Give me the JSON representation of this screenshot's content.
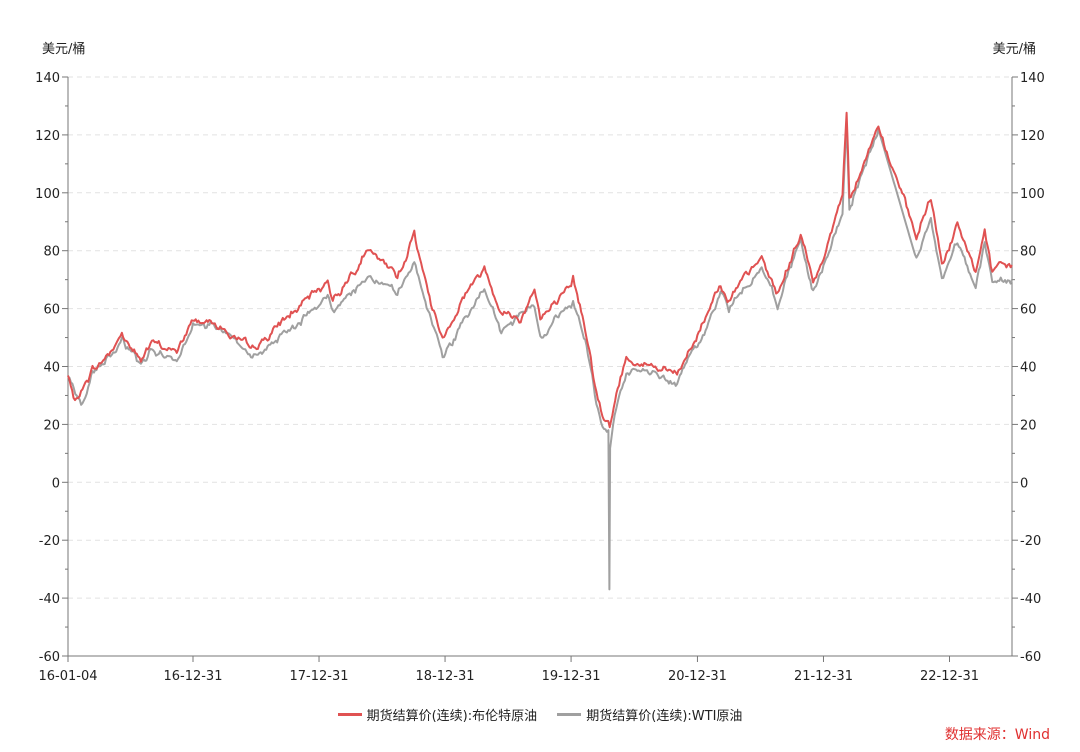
{
  "y_unit_left": "美元/桶",
  "y_unit_right": "美元/桶",
  "source": "数据来源：Wind",
  "colors": {
    "brent": "#e05252",
    "wti": "#a0a0a0",
    "grid": "#e2e2e2",
    "axis": "#777777"
  },
  "chart_data": {
    "type": "line",
    "ylim": [
      -60,
      140
    ],
    "yticks": [
      140,
      120,
      100,
      80,
      60,
      40,
      20,
      0,
      -20,
      -40,
      -60
    ],
    "xlim": [
      "2016-01-04",
      "2023-06-30"
    ],
    "xticks": [
      {
        "date": "2016-01-04",
        "label": "16-01-04"
      },
      {
        "date": "2016-12-31",
        "label": "16-12-31"
      },
      {
        "date": "2017-12-31",
        "label": "17-12-31"
      },
      {
        "date": "2018-12-31",
        "label": "18-12-31"
      },
      {
        "date": "2019-12-31",
        "label": "19-12-31"
      },
      {
        "date": "2020-12-31",
        "label": "20-12-31"
      },
      {
        "date": "2021-12-31",
        "label": "21-12-31"
      },
      {
        "date": "2022-12-31",
        "label": "22-12-31"
      }
    ],
    "grid": true,
    "legend": "bottom",
    "series": [
      {
        "name": "期货结算价(连续):布伦特原油",
        "key": "brent",
        "points": [
          [
            "2016-01-04",
            37
          ],
          [
            "2016-01-20",
            28
          ],
          [
            "2016-02-11",
            31
          ],
          [
            "2016-03-15",
            39
          ],
          [
            "2016-04-15",
            42
          ],
          [
            "2016-06-08",
            51
          ],
          [
            "2016-08-02",
            42
          ],
          [
            "2016-08-30",
            48
          ],
          [
            "2016-11-14",
            45
          ],
          [
            "2016-12-31",
            56
          ],
          [
            "2017-02-28",
            56
          ],
          [
            "2017-06-21",
            45
          ],
          [
            "2017-09-29",
            57
          ],
          [
            "2017-12-31",
            66
          ],
          [
            "2018-01-25",
            70
          ],
          [
            "2018-02-09",
            63
          ],
          [
            "2018-05-17",
            80
          ],
          [
            "2018-08-15",
            71
          ],
          [
            "2018-10-03",
            86
          ],
          [
            "2018-11-20",
            62
          ],
          [
            "2018-12-24",
            50
          ],
          [
            "2019-02-28",
            66
          ],
          [
            "2019-04-24",
            74
          ],
          [
            "2019-06-12",
            60
          ],
          [
            "2019-08-07",
            56
          ],
          [
            "2019-09-16",
            68
          ],
          [
            "2019-10-03",
            57
          ],
          [
            "2019-12-31",
            66
          ],
          [
            "2020-01-06",
            69
          ],
          [
            "2020-02-10",
            54
          ],
          [
            "2020-03-09",
            35
          ],
          [
            "2020-03-31",
            23
          ],
          [
            "2020-04-21",
            19
          ],
          [
            "2020-05-18",
            34
          ],
          [
            "2020-06-08",
            43
          ],
          [
            "2020-09-08",
            40
          ],
          [
            "2020-11-02",
            37
          ],
          [
            "2020-12-31",
            51
          ],
          [
            "2021-03-08",
            70
          ],
          [
            "2021-04-01",
            63
          ],
          [
            "2021-07-05",
            77
          ],
          [
            "2021-08-20",
            65
          ],
          [
            "2021-10-26",
            86
          ],
          [
            "2021-12-01",
            69
          ],
          [
            "2021-12-31",
            78
          ],
          [
            "2022-02-24",
            100
          ],
          [
            "2022-03-08",
            128
          ],
          [
            "2022-03-16",
            99
          ],
          [
            "2022-06-08",
            123
          ],
          [
            "2022-09-26",
            84
          ],
          [
            "2022-11-07",
            98
          ],
          [
            "2022-12-09",
            76
          ],
          [
            "2023-01-23",
            88
          ],
          [
            "2023-03-17",
            73
          ],
          [
            "2023-04-12",
            87
          ],
          [
            "2023-05-04",
            72
          ],
          [
            "2023-06-30",
            75
          ]
        ]
      },
      {
        "name": "期货结算价(连续):WTI原油",
        "key": "wti",
        "points": [
          [
            "2016-01-04",
            36
          ],
          [
            "2016-02-11",
            26
          ],
          [
            "2016-03-15",
            37
          ],
          [
            "2016-04-15",
            40
          ],
          [
            "2016-06-08",
            50
          ],
          [
            "2016-08-02",
            40
          ],
          [
            "2016-08-30",
            46
          ],
          [
            "2016-11-14",
            43
          ],
          [
            "2016-12-31",
            54
          ],
          [
            "2017-02-28",
            54
          ],
          [
            "2017-06-21",
            43
          ],
          [
            "2017-09-29",
            52
          ],
          [
            "2017-12-31",
            60
          ],
          [
            "2018-01-25",
            66
          ],
          [
            "2018-02-09",
            59
          ],
          [
            "2018-05-21",
            72
          ],
          [
            "2018-08-15",
            65
          ],
          [
            "2018-10-03",
            76
          ],
          [
            "2018-11-20",
            55
          ],
          [
            "2018-12-24",
            43
          ],
          [
            "2019-04-24",
            66
          ],
          [
            "2019-06-12",
            52
          ],
          [
            "2019-09-16",
            62
          ],
          [
            "2019-10-03",
            52
          ],
          [
            "2019-12-31",
            61
          ],
          [
            "2020-01-06",
            63
          ],
          [
            "2020-02-10",
            50
          ],
          [
            "2020-03-09",
            31
          ],
          [
            "2020-03-31",
            20
          ],
          [
            "2020-04-17",
            18
          ],
          [
            "2020-04-20",
            -37
          ],
          [
            "2020-04-22",
            14
          ],
          [
            "2020-05-18",
            32
          ],
          [
            "2020-06-08",
            39
          ],
          [
            "2020-09-08",
            37
          ],
          [
            "2020-11-02",
            35
          ],
          [
            "2020-12-31",
            48
          ],
          [
            "2021-03-08",
            66
          ],
          [
            "2021-04-01",
            60
          ],
          [
            "2021-07-05",
            75
          ],
          [
            "2021-08-20",
            62
          ],
          [
            "2021-10-26",
            84
          ],
          [
            "2021-12-01",
            66
          ],
          [
            "2021-12-31",
            75
          ],
          [
            "2022-02-24",
            93
          ],
          [
            "2022-03-08",
            124
          ],
          [
            "2022-03-16",
            95
          ],
          [
            "2022-06-08",
            122
          ],
          [
            "2022-09-26",
            77
          ],
          [
            "2022-11-07",
            92
          ],
          [
            "2022-12-09",
            71
          ],
          [
            "2023-01-23",
            82
          ],
          [
            "2023-03-17",
            67
          ],
          [
            "2023-04-12",
            83
          ],
          [
            "2023-05-04",
            69
          ],
          [
            "2023-06-30",
            70
          ]
        ]
      }
    ]
  }
}
